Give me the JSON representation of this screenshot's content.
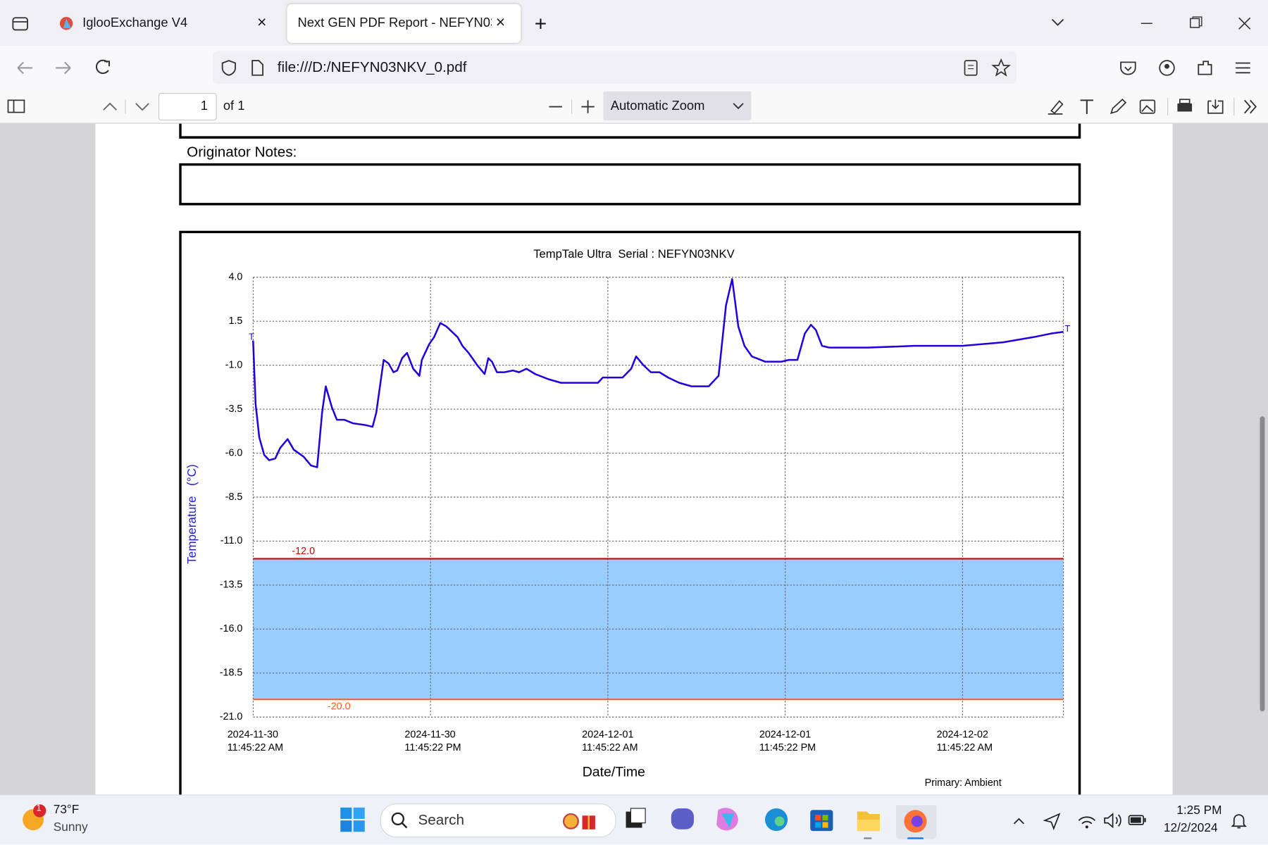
{
  "browser": {
    "tabs": [
      "IglooExchange V4",
      "Next GEN PDF Report - NEFYN03N"
    ],
    "url": "file:///D:/NEFYN03NKV_0.pdf"
  },
  "pdf_toolbar": {
    "page": "1",
    "page_count": "of 1",
    "zoom": "Automatic Zoom"
  },
  "document": {
    "notes_label": "Originator Notes:"
  },
  "chart_data": {
    "type": "line",
    "title": "TempTale Ultra  Serial : NEFYN03NKV",
    "x_label": "Date/Time",
    "y_label": "Temperature   (°C)",
    "note": "Primary: Ambient",
    "start_marker": "T",
    "end_marker": "T",
    "color": "#2200dd",
    "grid": true,
    "xlim": [
      "2024-11-30T11:45",
      "2024-12-02T18:35"
    ],
    "xticks": [
      {
        "value": "2024-11-30T11:45:22",
        "label": "2024-11-30 11:45:22 AM"
      },
      {
        "value": "2024-11-30T23:45:22",
        "label": "2024-11-30 11:45:22 PM"
      },
      {
        "value": "2024-12-01T11:45:22",
        "label": "2024-12-01 11:45:22 AM"
      },
      {
        "value": "2024-12-01T23:45:22",
        "label": "2024-12-01 11:45:22 PM"
      },
      {
        "value": "2024-12-02T11:45:22",
        "label": "2024-12-02 11:45:22 AM"
      }
    ],
    "ylim": [
      -21,
      4
    ],
    "yticks": [
      {
        "value": 4,
        "label": "4.0"
      },
      1.5,
      {
        "value": -1,
        "label": "-1.0"
      },
      -3.5,
      {
        "value": -6,
        "label": "-6.0"
      },
      -8.5,
      {
        "value": -11,
        "label": "-11.0"
      },
      -13.5,
      {
        "value": -16,
        "label": "-16.0"
      },
      -18.5,
      {
        "value": -21,
        "label": "-21.0"
      }
    ],
    "thresholds": [
      {
        "value": -12,
        "label": "-12.0",
        "color": "#d40000"
      },
      {
        "value": -20,
        "label": "-20.0",
        "color": "#ff5a1f"
      }
    ],
    "band_color": "#99ccff",
    "x": [
      "2024-11-30T11:45",
      "2024-11-30T11:55",
      "2024-11-30T12:10",
      "2024-11-30T12:30",
      "2024-11-30T12:50",
      "2024-11-30T13:15",
      "2024-11-30T13:35",
      "2024-11-30T14:05",
      "2024-11-30T14:30",
      "2024-11-30T15:10",
      "2024-11-30T15:40",
      "2024-11-30T16:05",
      "2024-11-30T16:25",
      "2024-11-30T16:40",
      "2024-11-30T17:05",
      "2024-11-30T17:25",
      "2024-11-30T17:55",
      "2024-11-30T18:30",
      "2024-11-30T19:20",
      "2024-11-30T19:50",
      "2024-11-30T20:05",
      "2024-11-30T20:35",
      "2024-11-30T20:55",
      "2024-11-30T21:15",
      "2024-11-30T21:30",
      "2024-11-30T21:50",
      "2024-11-30T22:10",
      "2024-11-30T22:35",
      "2024-11-30T23:00",
      "2024-11-30T23:10",
      "2024-11-30T23:40",
      "2024-12-01T00:00",
      "2024-12-01T00:25",
      "2024-12-01T00:50",
      "2024-12-01T01:35",
      "2024-12-01T01:55",
      "2024-12-01T02:20",
      "2024-12-01T02:55",
      "2024-12-01T03:25",
      "2024-12-01T03:40",
      "2024-12-01T03:55",
      "2024-12-01T04:15",
      "2024-12-01T04:45",
      "2024-12-01T05:20",
      "2024-12-01T05:45",
      "2024-12-01T06:15",
      "2024-12-01T06:50",
      "2024-12-01T07:45",
      "2024-12-01T08:35",
      "2024-12-01T11:05",
      "2024-12-01T11:25",
      "2024-12-01T12:45",
      "2024-12-01T13:20",
      "2024-12-01T13:40",
      "2024-12-01T14:10",
      "2024-12-01T14:40",
      "2024-12-01T15:15",
      "2024-12-01T15:50",
      "2024-12-01T16:35",
      "2024-12-01T17:25",
      "2024-12-01T18:35",
      "2024-12-01T19:15",
      "2024-12-01T19:45",
      "2024-12-01T20:10",
      "2024-12-01T20:35",
      "2024-12-01T21:00",
      "2024-12-01T21:30",
      "2024-12-01T22:25",
      "2024-12-01T23:30",
      "2024-12-02T00:00",
      "2024-12-02T00:35",
      "2024-12-02T01:05",
      "2024-12-02T01:30",
      "2024-12-02T01:50",
      "2024-12-02T02:15",
      "2024-12-02T02:45",
      "2024-12-02T05:20",
      "2024-12-02T08:30",
      "2024-12-02T11:45",
      "2024-12-02T14:30",
      "2024-12-02T16:35",
      "2024-12-02T17:45",
      "2024-12-02T18:35"
    ],
    "values": [
      0.4,
      -3.2,
      -5.1,
      -6.1,
      -6.4,
      -6.3,
      -5.7,
      -5.2,
      -5.8,
      -6.2,
      -6.7,
      -6.8,
      -3.7,
      -2.2,
      -3.4,
      -4.1,
      -4.1,
      -4.3,
      -4.4,
      -4.5,
      -3.7,
      -0.7,
      -0.9,
      -1.4,
      -1.3,
      -0.6,
      -0.3,
      -1.2,
      -1.6,
      -0.7,
      0.2,
      0.6,
      1.4,
      1.2,
      0.6,
      0.1,
      -0.3,
      -1.0,
      -1.5,
      -0.6,
      -0.8,
      -1.4,
      -1.4,
      -1.3,
      -1.4,
      -1.2,
      -1.5,
      -1.8,
      -2.0,
      -2.0,
      -1.7,
      -1.7,
      -1.2,
      -0.5,
      -1.0,
      -1.4,
      -1.4,
      -1.7,
      -2.0,
      -2.2,
      -2.2,
      -1.6,
      2.4,
      3.9,
      1.2,
      0.1,
      -0.5,
      -0.8,
      -0.8,
      -0.7,
      -0.7,
      0.8,
      1.3,
      1.0,
      0.1,
      0.0,
      0.0,
      0.1,
      0.1,
      0.3,
      0.6,
      0.8,
      0.9
    ]
  },
  "taskbar": {
    "weather_badge": "1",
    "temperature": "73°F",
    "condition": "Sunny",
    "search": "Search",
    "time": "1:25 PM",
    "date": "12/2/2024"
  }
}
